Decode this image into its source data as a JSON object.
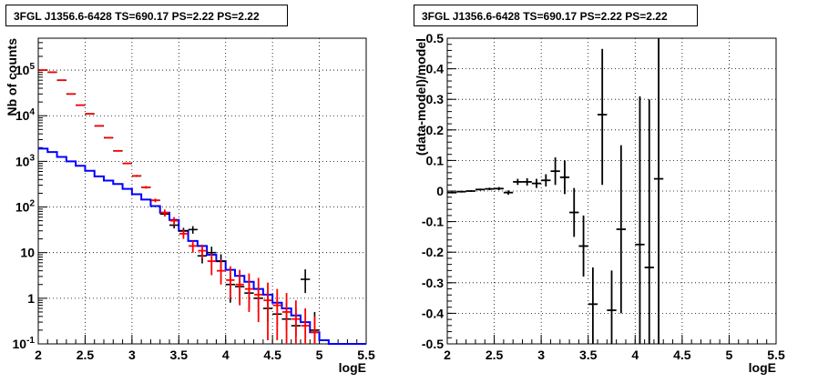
{
  "titles": {
    "left": "3FGL J1356.6-6428 TS=690.17 PS=2.22 PS=2.22",
    "right": "3FGL J1356.6-6428 TS=690.17 PS=2.22 PS=2.22"
  },
  "colors": {
    "data": "#000000",
    "model": "#ff0000",
    "background_model": "#0000ff",
    "grid": "#000000"
  },
  "chart_data": [
    {
      "type": "line",
      "title": "3FGL J1356.6-6428 TS=690.17 PS=2.22 PS=2.22",
      "xlabel": "logE",
      "ylabel": "Nb of counts",
      "xlim": [
        2,
        5.5
      ],
      "ylim": [
        0.1,
        500000
      ],
      "yscale": "log",
      "grid": true,
      "x_ticks": [
        "2",
        "2.5",
        "3",
        "3.5",
        "4",
        "4.5",
        "5",
        "5.5"
      ],
      "y_ticks": [
        {
          "value": 0.1,
          "label": "10⁻¹",
          "base": "10",
          "exp": "-1"
        },
        {
          "value": 1,
          "label": "1",
          "base": "1",
          "exp": ""
        },
        {
          "value": 10,
          "label": "10",
          "base": "10",
          "exp": ""
        },
        {
          "value": 100,
          "label": "10²",
          "base": "10",
          "exp": "2"
        },
        {
          "value": 1000,
          "label": "10³",
          "base": "10",
          "exp": "3"
        },
        {
          "value": 10000,
          "label": "10⁴",
          "base": "10",
          "exp": "4"
        },
        {
          "value": 100000,
          "label": "10⁵",
          "base": "10",
          "exp": "5"
        }
      ],
      "bin_width": 0.1,
      "series": [
        {
          "role": "data",
          "color": "#000000",
          "x": [
            2.05,
            2.15,
            2.25,
            2.35,
            2.45,
            2.55,
            2.65,
            2.75,
            2.85,
            2.95,
            3.05,
            3.15,
            3.25,
            3.35,
            3.45,
            3.55,
            3.65,
            3.75,
            3.85,
            3.95,
            4.05,
            4.15,
            4.25,
            4.35,
            4.45,
            4.55,
            4.65,
            4.75,
            4.85,
            4.95
          ],
          "values": [
            100000,
            90000,
            60000,
            30000,
            17000,
            11000,
            6000,
            3300,
            1700,
            900,
            480,
            270,
            140,
            70,
            40,
            30,
            32,
            8.5,
            10,
            6.5,
            2,
            1.8,
            1.3,
            1.0,
            0.6,
            0.45,
            0.35,
            0.25,
            2.6,
            0.2
          ],
          "err_low": [
            99000,
            89000,
            59000,
            29700,
            16800,
            10850,
            5900,
            3240,
            1660,
            870,
            458,
            254,
            128,
            62,
            34,
            25,
            26,
            5.8,
            7,
            4.2,
            0.8,
            0.9,
            0.6,
            0.5,
            0.3,
            0.25,
            0.2,
            0.15,
            1.3,
            0.1
          ],
          "err_high": [
            101000,
            91000,
            61000,
            30300,
            17200,
            11150,
            6100,
            3360,
            1740,
            930,
            502,
            286,
            152,
            78,
            46,
            35,
            38,
            11.5,
            13.5,
            9.2,
            3.4,
            2.9,
            2.2,
            1.8,
            1.2,
            1.0,
            0.8,
            0.6,
            4.3,
            0.5
          ]
        },
        {
          "role": "model",
          "color": "#ff0000",
          "x": [
            2.05,
            2.15,
            2.25,
            2.35,
            2.45,
            2.55,
            2.65,
            2.75,
            2.85,
            2.95,
            3.05,
            3.15,
            3.25,
            3.35,
            3.45,
            3.55,
            3.65,
            3.75,
            3.85,
            3.95,
            4.05,
            4.15,
            4.25,
            4.35,
            4.45,
            4.55,
            4.65,
            4.75,
            4.85,
            4.95
          ],
          "values": [
            100000,
            90000,
            60000,
            30000,
            17000,
            11000,
            6000,
            3300,
            1700,
            900,
            480,
            270,
            140,
            75,
            50,
            26,
            14,
            11,
            6.5,
            4,
            2.5,
            2,
            1.6,
            1.2,
            0.9,
            0.7,
            0.5,
            0.35,
            0.25,
            0.18
          ],
          "err_low": [
            98500,
            88500,
            59200,
            29700,
            16800,
            10850,
            5900,
            3240,
            1660,
            870,
            458,
            254,
            128,
            62,
            40,
            20,
            10,
            7.5,
            3.2,
            2,
            1.0,
            0.7,
            0.5,
            0.3,
            0.12,
            0.12,
            0.1,
            0.1,
            0.1,
            0.1
          ],
          "err_high": [
            101500,
            91500,
            60800,
            30300,
            17200,
            11150,
            6100,
            3360,
            1740,
            930,
            502,
            286,
            152,
            88,
            60,
            32,
            18,
            15,
            9.5,
            7,
            5,
            4.2,
            3.5,
            2.8,
            2.2,
            1.6,
            1.3,
            0.9,
            0.6,
            0.4
          ]
        },
        {
          "role": "background_model",
          "color": "#0000ff",
          "edges": [
            2.0,
            2.1,
            2.2,
            2.3,
            2.4,
            2.5,
            2.6,
            2.7,
            2.8,
            2.9,
            3.0,
            3.1,
            3.2,
            3.3,
            3.4,
            3.5,
            3.6,
            3.7,
            3.8,
            3.9,
            4.0,
            4.1,
            4.2,
            4.3,
            4.4,
            4.5,
            4.6,
            4.7,
            4.8,
            4.9,
            5.0,
            5.1,
            5.5
          ],
          "values": [
            1900,
            1600,
            1250,
            1000,
            800,
            620,
            470,
            380,
            320,
            250,
            190,
            145,
            105,
            75,
            52,
            30,
            18,
            14,
            9,
            6.5,
            4.2,
            3.1,
            2.3,
            1.6,
            1.2,
            0.8,
            0.6,
            0.42,
            0.3,
            0.18,
            0.12,
            0.1
          ]
        }
      ]
    },
    {
      "type": "scatter",
      "title": "3FGL J1356.6-6428 TS=690.17 PS=2.22 PS=2.22",
      "xlabel": "logE",
      "ylabel": "(data-model)/model",
      "xlim": [
        2,
        5.5
      ],
      "ylim": [
        -0.5,
        0.5
      ],
      "grid": true,
      "x_ticks": [
        "2",
        "2.5",
        "3",
        "3.5",
        "4",
        "4.5",
        "5",
        "5.5"
      ],
      "y_ticks": [
        "-0.5",
        "-0.4",
        "-0.3",
        "-0.2",
        "-0.1",
        "0",
        "0.1",
        "0.2",
        "0.3",
        "0.4",
        "0.5"
      ],
      "bin_width": 0.1,
      "series": [
        {
          "role": "residuals",
          "color": "#000000",
          "x": [
            2.05,
            2.15,
            2.25,
            2.35,
            2.45,
            2.55,
            2.65,
            2.75,
            2.85,
            2.95,
            3.05,
            3.15,
            3.25,
            3.35,
            3.45,
            3.55,
            3.65,
            3.75,
            3.85,
            4.05,
            4.15,
            4.25
          ],
          "values": [
            -0.005,
            -0.002,
            0.0,
            0.005,
            0.007,
            0.008,
            -0.005,
            0.03,
            0.03,
            0.025,
            0.035,
            0.065,
            0.045,
            -0.07,
            -0.18,
            -0.37,
            0.25,
            -0.39,
            -0.125,
            -0.175,
            -0.25,
            0.04
          ],
          "err_low": [
            -0.008,
            -0.005,
            -0.003,
            0.002,
            0.003,
            0.003,
            -0.012,
            0.02,
            0.018,
            0.01,
            0.015,
            0.02,
            -0.01,
            -0.15,
            -0.28,
            -0.5,
            0.02,
            -0.5,
            -0.4,
            -0.5,
            -0.5,
            -0.5
          ],
          "err_high": [
            -0.002,
            0.001,
            0.003,
            0.008,
            0.011,
            0.013,
            0.002,
            0.04,
            0.042,
            0.04,
            0.055,
            0.11,
            0.1,
            0.01,
            -0.08,
            -0.25,
            0.465,
            -0.26,
            0.15,
            0.31,
            0.3,
            0.5
          ]
        }
      ]
    }
  ]
}
